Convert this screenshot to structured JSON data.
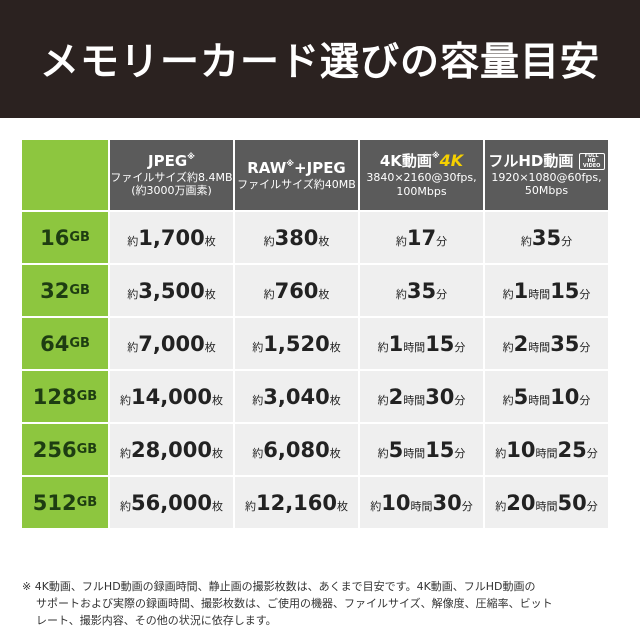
{
  "header": {
    "title": "メモリーカード選びの容量目安"
  },
  "table": {
    "columns": [
      {
        "title": [
          "JPEG",
          "※"
        ],
        "sub": [
          "ファイルサイズ約8.4MB",
          "(約3000万画素)"
        ]
      },
      {
        "title": [
          "RAW",
          "※",
          "+JPEG"
        ],
        "sub": [
          "ファイルサイズ約40MB"
        ]
      },
      {
        "title": [
          "4K動画",
          "※",
          "4K"
        ],
        "sub": [
          "3840×2160@30fps,",
          "100Mbps"
        ]
      },
      {
        "title": [
          "フルHD動画",
          "FULL HD VIDEO"
        ],
        "sub": [
          "1920×1080@60fps,",
          "50Mbps"
        ]
      }
    ],
    "rows": [
      {
        "label": [
          "16",
          "GB"
        ],
        "cells": [
          [
            "約",
            "1,700",
            "枚"
          ],
          [
            "約",
            "380",
            "枚"
          ],
          [
            "約",
            "17",
            "分"
          ],
          [
            "約",
            "35",
            "分"
          ]
        ]
      },
      {
        "label": [
          "32",
          "GB"
        ],
        "cells": [
          [
            "約",
            "3,500",
            "枚"
          ],
          [
            "約",
            "760",
            "枚"
          ],
          [
            "約",
            "35",
            "分"
          ],
          [
            "約",
            "1",
            "時間",
            "15",
            "分"
          ]
        ]
      },
      {
        "label": [
          "64",
          "GB"
        ],
        "cells": [
          [
            "約",
            "7,000",
            "枚"
          ],
          [
            "約",
            "1,520",
            "枚"
          ],
          [
            "約",
            "1",
            "時間",
            "15",
            "分"
          ],
          [
            "約",
            "2",
            "時間",
            "35",
            "分"
          ]
        ]
      },
      {
        "label": [
          "128",
          "GB"
        ],
        "cells": [
          [
            "約",
            "14,000",
            "枚"
          ],
          [
            "約",
            "3,040",
            "枚"
          ],
          [
            "約",
            "2",
            "時間",
            "30",
            "分"
          ],
          [
            "約",
            "5",
            "時間",
            "10",
            "分"
          ]
        ]
      },
      {
        "label": [
          "256",
          "GB"
        ],
        "cells": [
          [
            "約",
            "28,000",
            "枚"
          ],
          [
            "約",
            "6,080",
            "枚"
          ],
          [
            "約",
            "5",
            "時間",
            "15",
            "分"
          ],
          [
            "約",
            "10",
            "時間",
            "25",
            "分"
          ]
        ]
      },
      {
        "label": [
          "512",
          "GB"
        ],
        "cells": [
          [
            "約",
            "56,000",
            "枚"
          ],
          [
            "約",
            "12,160",
            "枚"
          ],
          [
            "約",
            "10",
            "時間",
            "30",
            "分"
          ],
          [
            "約",
            "20",
            "時間",
            "50",
            "分"
          ]
        ]
      }
    ]
  },
  "note": [
    "※ 4K動画、フルHD動画の録画時間、静止画の撮影枚数は、あくまで目安です。4K動画、フルHD動画の",
    "サポートおよび実際の録画時間、撮影枚数は、ご使用の機器、ファイルサイズ、解像度、圧縮率、ビット",
    "レート、撮影内容、その他の状況に依存します。"
  ]
}
